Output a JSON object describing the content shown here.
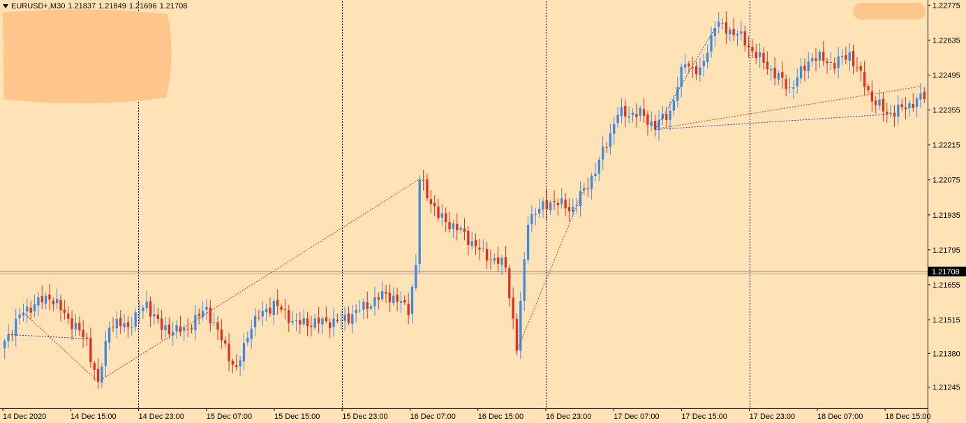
{
  "window": {
    "symbol": "EURUSD+,M30",
    "ohlc": [
      "1.21837",
      "1.21849",
      "1.21696",
      "1.21708"
    ]
  },
  "colors": {
    "background": "#FFE3B6",
    "bull": "#3D8BE0",
    "bear": "#E0301E",
    "grid": "#000000",
    "current_price_bg": "#000000",
    "current_price_text": "#FFFFFF",
    "redaction": "#FFC58A"
  },
  "chart_data": {
    "type": "candlestick",
    "symbol": "EURUSD+",
    "timeframe": "M30",
    "y_ticks": [
      1.22775,
      1.22635,
      1.22495,
      1.22355,
      1.22215,
      1.22075,
      1.21935,
      1.21795,
      1.21655,
      1.21515,
      1.2138,
      1.21245
    ],
    "y_tick_labels": [
      "1.22775",
      "1.22635",
      "1.22495",
      "1.22355",
      "1.22215",
      "1.22075",
      "1.21935",
      "1.21795",
      "1.21655",
      "1.21515",
      "1.21380",
      "1.21245"
    ],
    "ylim": [
      1.2116,
      1.2279
    ],
    "current_price": 1.21708,
    "current_price_label": "1.21708",
    "x_labels": [
      "14 Dec 2020",
      "14 Dec 15:00",
      "14 Dec 23:00",
      "15 Dec 07:00",
      "15 Dec 15:00",
      "15 Dec 23:00",
      "16 Dec 07:00",
      "16 Dec 15:00",
      "16 Dec 23:00",
      "17 Dec 07:00",
      "17 Dec 15:00",
      "17 Dec 23:00",
      "18 Dec 07:00",
      "18 Dec 15:00"
    ],
    "day_separators": [
      "14 Dec 23:00",
      "15 Dec 23:00",
      "16 Dec 23:00",
      "17 Dec 23:00"
    ],
    "anchors": [
      {
        "t": 0,
        "p": 1.2143
      },
      {
        "t": 5,
        "p": 1.2155
      },
      {
        "t": 12,
        "p": 1.2161
      },
      {
        "t": 22,
        "p": 1.2143
      },
      {
        "t": 25,
        "p": 1.2125
      },
      {
        "t": 28,
        "p": 1.215
      },
      {
        "t": 33,
        "p": 1.2149
      },
      {
        "t": 38,
        "p": 1.2158
      },
      {
        "t": 42,
        "p": 1.2148
      },
      {
        "t": 48,
        "p": 1.2147
      },
      {
        "t": 54,
        "p": 1.2156
      },
      {
        "t": 62,
        "p": 1.2131
      },
      {
        "t": 66,
        "p": 1.215
      },
      {
        "t": 72,
        "p": 1.2158
      },
      {
        "t": 78,
        "p": 1.215
      },
      {
        "t": 90,
        "p": 1.2151
      },
      {
        "t": 102,
        "p": 1.2162
      },
      {
        "t": 108,
        "p": 1.2156
      },
      {
        "t": 110,
        "p": 1.2173
      },
      {
        "t": 111,
        "p": 1.2208
      },
      {
        "t": 116,
        "p": 1.2193
      },
      {
        "t": 122,
        "p": 1.2187
      },
      {
        "t": 128,
        "p": 1.2178
      },
      {
        "t": 134,
        "p": 1.2173
      },
      {
        "t": 137,
        "p": 1.214
      },
      {
        "t": 140,
        "p": 1.2192
      },
      {
        "t": 146,
        "p": 1.2199
      },
      {
        "t": 152,
        "p": 1.2196
      },
      {
        "t": 158,
        "p": 1.2211
      },
      {
        "t": 164,
        "p": 1.2234
      },
      {
        "t": 170,
        "p": 1.2234
      },
      {
        "t": 174,
        "p": 1.2229
      },
      {
        "t": 178,
        "p": 1.2235
      },
      {
        "t": 182,
        "p": 1.2255
      },
      {
        "t": 186,
        "p": 1.225
      },
      {
        "t": 190,
        "p": 1.227
      },
      {
        "t": 196,
        "p": 1.2266
      },
      {
        "t": 202,
        "p": 1.2256
      },
      {
        "t": 210,
        "p": 1.2244
      },
      {
        "t": 216,
        "p": 1.2257
      },
      {
        "t": 222,
        "p": 1.2254
      },
      {
        "t": 226,
        "p": 1.2258
      },
      {
        "t": 232,
        "p": 1.224
      },
      {
        "t": 236,
        "p": 1.2234
      },
      {
        "t": 240,
        "p": 1.2236
      },
      {
        "t": 246,
        "p": 1.2241
      }
    ]
  },
  "redactions": [
    {
      "id": "top-left"
    },
    {
      "id": "top-right"
    }
  ]
}
